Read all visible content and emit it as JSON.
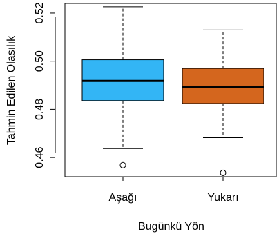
{
  "chart_data": {
    "type": "boxplot",
    "xlabel": "Bugünkü Yön",
    "ylabel": "Tahmin Edilen Olasılık",
    "ylim": [
      0.452,
      0.524
    ],
    "yticks": [
      "0.46",
      "0.48",
      "0.50",
      "0.52"
    ],
    "categories": [
      "Aşağı",
      "Yukarı"
    ],
    "boxes": [
      {
        "category": "Aşağı",
        "color": "#33b5f5",
        "whisker_low": 0.4637,
        "q1": 0.4836,
        "median": 0.4918,
        "q3": 0.5006,
        "whisker_high": 0.5226,
        "outliers": [
          0.4568
        ]
      },
      {
        "category": "Yukarı",
        "color": "#d4661e",
        "whisker_low": 0.4682,
        "q1": 0.4824,
        "median": 0.4893,
        "q3": 0.497,
        "whisker_high": 0.513,
        "outliers": [
          0.4536
        ]
      }
    ],
    "grid": false,
    "legend": "none"
  }
}
